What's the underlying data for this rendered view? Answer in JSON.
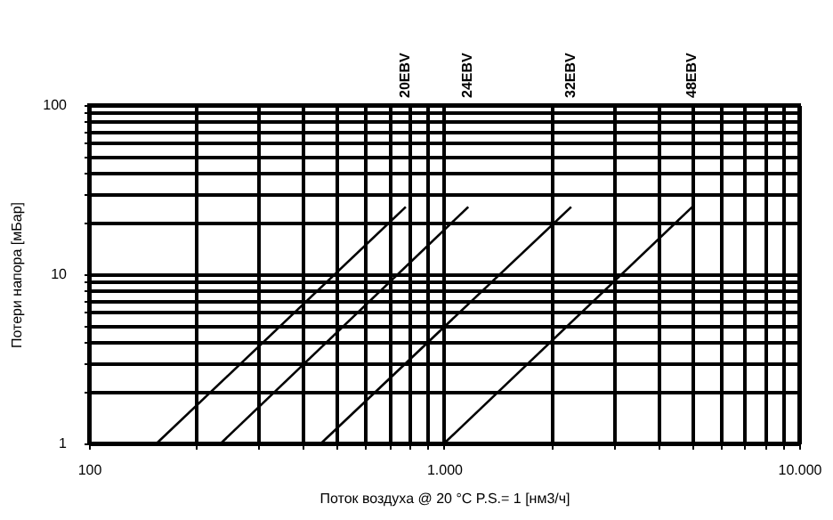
{
  "chart_data": {
    "type": "line",
    "xlabel": "Поток воздуха @ 20 °C P.S.= 1 [нм3/ч]",
    "ylabel": "Потери напора [мБар]",
    "log": "xy",
    "grid": true,
    "legend": false,
    "marker": "none",
    "line_style": "solid",
    "xlim": [
      100,
      10000
    ],
    "ylim": [
      1,
      100
    ],
    "xticks": [
      100,
      {
        "value": 200,
        "label": null
      },
      {
        "value": 300,
        "label": null
      },
      {
        "value": 400,
        "label": null
      },
      {
        "value": 500,
        "label": null
      },
      {
        "value": 600,
        "label": null
      },
      {
        "value": 700,
        "label": null
      },
      {
        "value": 800,
        "label": null
      },
      {
        "value": 900,
        "label": null
      },
      {
        "value": 1000,
        "label": "1.000"
      },
      {
        "value": 2000,
        "label": null
      },
      {
        "value": 3000,
        "label": null
      },
      {
        "value": 4000,
        "label": null
      },
      {
        "value": 5000,
        "label": null
      },
      {
        "value": 6000,
        "label": null
      },
      {
        "value": 7000,
        "label": null
      },
      {
        "value": 8000,
        "label": null
      },
      {
        "value": 9000,
        "label": null
      },
      {
        "value": 10000,
        "label": "10.000"
      }
    ],
    "yticks": [
      1,
      {
        "value": 2,
        "label": null
      },
      {
        "value": 3,
        "label": null
      },
      {
        "value": 4,
        "label": null
      },
      {
        "value": 5,
        "label": null
      },
      {
        "value": 6,
        "label": null
      },
      {
        "value": 7,
        "label": null
      },
      {
        "value": 8,
        "label": null
      },
      {
        "value": 9,
        "label": null
      },
      10,
      {
        "value": 20,
        "label": null
      },
      {
        "value": 30,
        "label": null
      },
      {
        "value": 40,
        "label": null
      },
      {
        "value": 50,
        "label": null
      },
      {
        "value": 60,
        "label": null
      },
      {
        "value": 70,
        "label": null
      },
      {
        "value": 80,
        "label": null
      },
      {
        "value": 90,
        "label": null
      },
      100
    ],
    "series": [
      {
        "name": "20EBV",
        "color": "#000000",
        "x": [
          155,
          780
        ],
        "values": [
          1,
          25
        ]
      },
      {
        "name": "24EBV",
        "color": "#000000",
        "x": [
          235,
          1170
        ],
        "values": [
          1,
          25
        ]
      },
      {
        "name": "32EBV",
        "color": "#000000",
        "x": [
          450,
          2280
        ],
        "values": [
          1,
          25
        ]
      },
      {
        "name": "48EBV",
        "color": "#000000",
        "x": [
          1000,
          5000
        ],
        "values": [
          1,
          25
        ]
      }
    ]
  }
}
